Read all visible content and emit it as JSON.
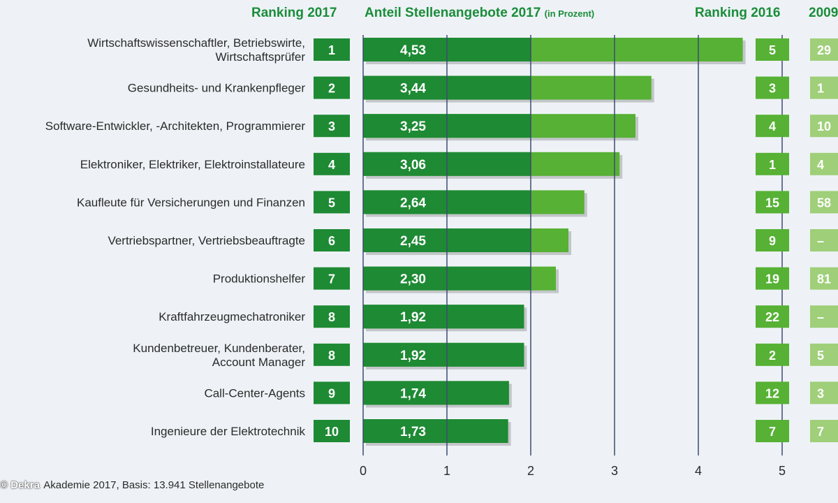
{
  "headers": {
    "rank2017": "Ranking 2017",
    "share": "Anteil Stellenangebote 2017",
    "share_unit": "(in Prozent)",
    "rank2016": "Ranking 2016",
    "rank2009": "2009"
  },
  "source": {
    "watermark": "© Dekra",
    "text": "Akademie 2017, Basis: 13.941 Stellenangebote"
  },
  "colors": {
    "dark_green": "#1e8a34",
    "light_green": "#56b134",
    "pale_green": "#9fcf79",
    "grid": "#3d4a72"
  },
  "chart_data": {
    "type": "bar",
    "orientation": "horizontal",
    "title": "Anteil Stellenangebote 2017 (in Prozent)",
    "xlim": [
      0,
      5
    ],
    "ticks": [
      "0",
      "1",
      "2",
      "3",
      "4",
      "5"
    ],
    "categories": [
      [
        "Wirtschaftswissenschaftler, Betriebswirte,",
        "Wirtschaftsprüfer"
      ],
      [
        "Gesundheits- und Krankenpfleger"
      ],
      [
        "Software-Entwickler, -Architekten, Programmierer"
      ],
      [
        "Elektroniker, Elektriker, Elektroinstallateure"
      ],
      [
        "Kaufleute für Versicherungen und Finanzen"
      ],
      [
        "Vertriebspartner, Vertriebsbeauftragte"
      ],
      [
        "Produktionshelfer"
      ],
      [
        "Kraftfahrzeugmechatroniker"
      ],
      [
        "Kundenbetreuer, Kundenberater,",
        "Account Manager"
      ],
      [
        "Call-Center-Agents"
      ],
      [
        "Ingenieure der Elektrotechnik"
      ]
    ],
    "values": [
      4.53,
      3.44,
      3.25,
      3.06,
      2.64,
      2.45,
      2.3,
      1.92,
      1.92,
      1.74,
      1.73
    ],
    "value_labels": [
      "4,53",
      "3,44",
      "3,25",
      "3,06",
      "2,64",
      "2,45",
      "2,30",
      "1,92",
      "1,92",
      "1,74",
      "1,73"
    ],
    "rank_2017": [
      "1",
      "2",
      "3",
      "4",
      "5",
      "6",
      "7",
      "8",
      "8",
      "9",
      "10"
    ],
    "rank_2016": [
      "5",
      "3",
      "4",
      "1",
      "15",
      "9",
      "19",
      "22",
      "2",
      "12",
      "7"
    ],
    "rank_2009": [
      "29",
      "1",
      "10",
      "4",
      "58",
      "–",
      "81",
      "–",
      "5",
      "3",
      "7"
    ]
  }
}
